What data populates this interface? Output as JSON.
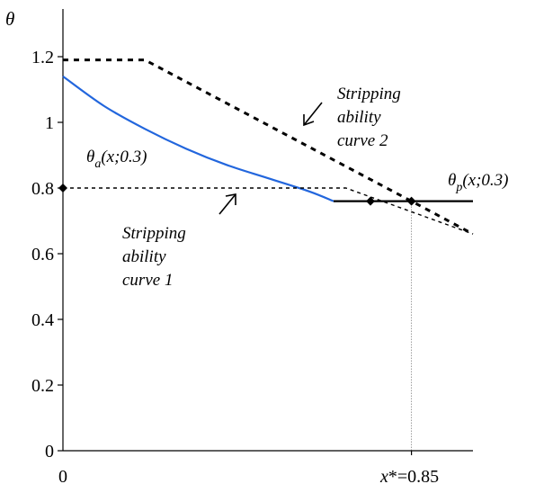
{
  "chart_data": {
    "type": "line",
    "ylabel": "θ",
    "xlim": [
      0,
      1
    ],
    "ylim": [
      0,
      1.4
    ],
    "y_ticks": [
      {
        "value": 0,
        "label": "0"
      },
      {
        "value": 0.2,
        "label": "0.2"
      },
      {
        "value": 0.4,
        "label": "0.4"
      },
      {
        "value": 0.6,
        "label": "0.6"
      },
      {
        "value": 0.8,
        "label": "0.8"
      },
      {
        "value": 1.0,
        "label": "1"
      },
      {
        "value": 1.2,
        "label": "1.2"
      }
    ],
    "x_ticks": [
      {
        "value": 0,
        "label": "0"
      },
      {
        "value": 0.85,
        "label": "x*=0.85"
      }
    ],
    "series": [
      {
        "key": "theta_a",
        "style": "solid",
        "color": "#2266dd",
        "x": [
          0,
          0.1,
          0.2,
          0.3,
          0.4,
          0.5,
          0.6,
          0.66
        ],
        "y": [
          1.14,
          1.05,
          0.98,
          0.92,
          0.87,
          0.83,
          0.79,
          0.76
        ]
      },
      {
        "key": "theta_p",
        "style": "solid",
        "color": "#000000",
        "x": [
          0.66,
          1.0
        ],
        "y": [
          0.76,
          0.76
        ]
      },
      {
        "key": "curve1",
        "style": "dotted",
        "color": "#000000",
        "x": [
          0,
          0.69,
          1.0
        ],
        "y": [
          0.8,
          0.8,
          0.66
        ]
      },
      {
        "key": "curve2",
        "style": "dashed",
        "color": "#000000",
        "x": [
          0,
          0.2,
          0.85,
          1.0
        ],
        "y": [
          1.19,
          1.19,
          0.76,
          0.66
        ]
      }
    ],
    "markers": [
      {
        "name": "marker-y-0.8",
        "x": 0,
        "y": 0.8
      },
      {
        "name": "marker-curve1-intersection",
        "x": 0.75,
        "y": 0.76
      },
      {
        "name": "marker-curve2-intersection",
        "x": 0.85,
        "y": 0.76
      }
    ],
    "reference_line": {
      "x": 0.85,
      "y_from": 0,
      "y_to": 0.76,
      "color": "#888888"
    },
    "annotations": {
      "theta_a": {
        "symbol": "θ",
        "sub": "a",
        "rest": "(x;0.3)"
      },
      "theta_p": {
        "symbol": "θ",
        "sub": "p",
        "rest": "(x;0.3)"
      },
      "curve1": [
        "Stripping",
        "ability",
        "curve 1"
      ],
      "curve2": [
        "Stripping",
        "ability",
        "curve 2"
      ]
    }
  }
}
